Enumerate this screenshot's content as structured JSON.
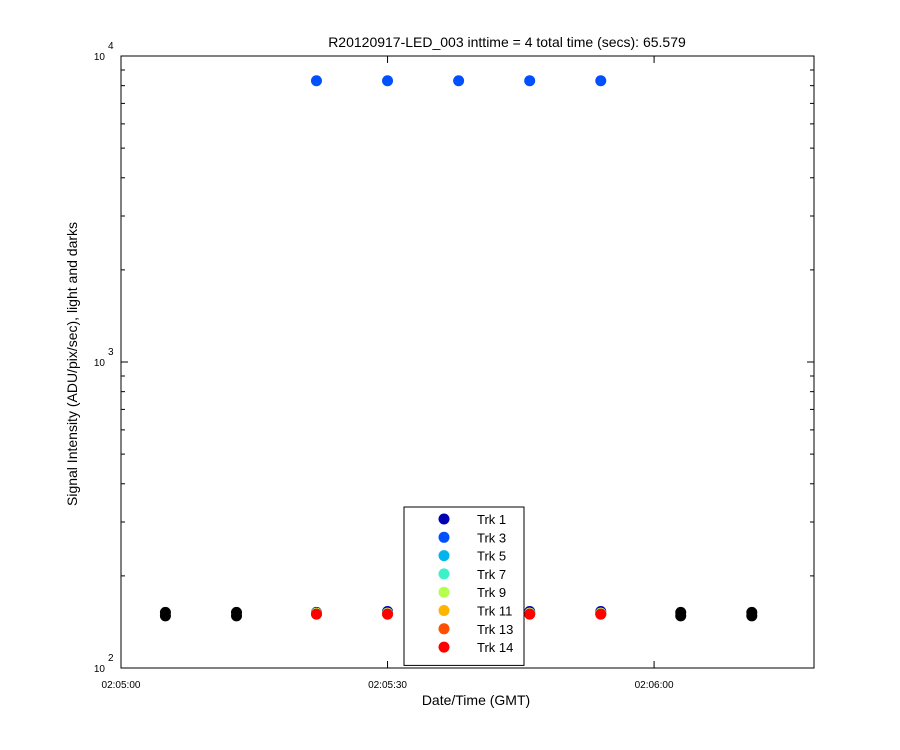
{
  "chart_data": {
    "type": "scatter",
    "title": "R20120917-LED_003 inttime = 4 total time (secs): 65.579",
    "xlabel": "Date/Time (GMT)",
    "ylabel": "Signal Intensity (ADU/pix/sec), light and darks",
    "y_scale": "log",
    "ylim": [
      100,
      10000
    ],
    "y_ticks": [
      {
        "base": "10",
        "exp": "2"
      },
      {
        "base": "10",
        "exp": "3"
      },
      {
        "base": "10",
        "exp": "4"
      }
    ],
    "xlim": [
      "02:05:00",
      "02:06:18"
    ],
    "x_ticks": [
      "02:05:00",
      "02:05:30",
      "02:06:00"
    ],
    "grid": false,
    "legend_position": "bottom-center",
    "series": [
      {
        "name": "Trk 1",
        "color": "#0000b4",
        "x": [
          "02:05:22",
          "02:05:30",
          "02:05:38",
          "02:05:46",
          "02:05:54"
        ],
        "y": [
          152,
          153,
          152,
          153,
          153
        ]
      },
      {
        "name": "Trk 3",
        "color": "#0050ff",
        "x": [
          "02:05:22",
          "02:05:30",
          "02:05:38",
          "02:05:46",
          "02:05:54"
        ],
        "y": [
          8300,
          8300,
          8300,
          8300,
          8300
        ]
      },
      {
        "name": "Trk 5",
        "color": "#00b4f0",
        "x": [
          "02:05:22",
          "02:05:30",
          "02:05:38",
          "02:05:46",
          "02:05:54"
        ],
        "y": [
          151,
          151,
          151,
          151,
          151
        ]
      },
      {
        "name": "Trk 7",
        "color": "#3cf0c8",
        "x": [
          "02:05:22",
          "02:05:30",
          "02:05:38",
          "02:05:46",
          "02:05:54"
        ],
        "y": [
          151,
          151,
          151,
          151,
          151
        ]
      },
      {
        "name": "Trk 9",
        "color": "#b4ff50",
        "x": [
          "02:05:22",
          "02:05:30",
          "02:05:38",
          "02:05:46",
          "02:05:54"
        ],
        "y": [
          151,
          151,
          151,
          151,
          151
        ]
      },
      {
        "name": "Trk 11",
        "color": "#ffb400",
        "x": [
          "02:05:22",
          "02:05:30",
          "02:05:38",
          "02:05:46",
          "02:05:54"
        ],
        "y": [
          150,
          150,
          150,
          150,
          150
        ]
      },
      {
        "name": "Trk 13",
        "color": "#ff5000",
        "x": [
          "02:05:22",
          "02:05:30",
          "02:05:38",
          "02:05:46",
          "02:05:54"
        ],
        "y": [
          150,
          150,
          150,
          150,
          150
        ]
      },
      {
        "name": "Trk 14",
        "color": "#ff0000",
        "x": [
          "02:05:22",
          "02:05:30",
          "02:05:38",
          "02:05:46",
          "02:05:54"
        ],
        "y": [
          150,
          150,
          150,
          150,
          150
        ]
      }
    ],
    "darks": {
      "color": "#000000",
      "x": [
        "02:05:05",
        "02:05:05",
        "02:05:13",
        "02:05:13",
        "02:06:03",
        "02:06:03",
        "02:06:11",
        "02:06:11"
      ],
      "y": [
        148,
        152,
        148,
        152,
        148,
        152,
        148,
        152
      ]
    }
  }
}
